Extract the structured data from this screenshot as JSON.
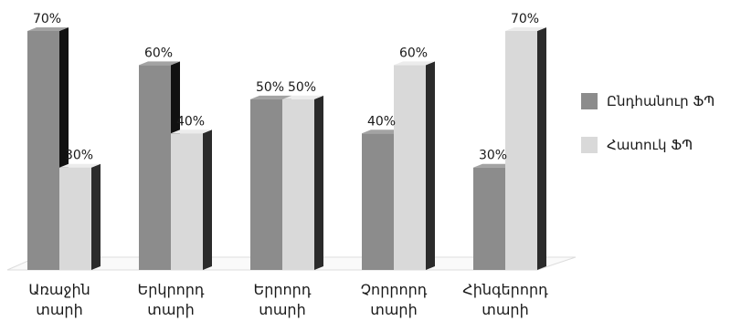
{
  "chart_data": {
    "type": "bar",
    "categories": [
      [
        "Առաջին",
        "տարի"
      ],
      [
        "Երկրորդ",
        "տարի"
      ],
      [
        "Երրորդ",
        "տարի"
      ],
      [
        "Չորրորդ",
        "տարի"
      ],
      [
        "Հինգերորդ",
        "տարի"
      ]
    ],
    "series": [
      {
        "name": "Ընդհանուր ՖՊ",
        "values": [
          70,
          60,
          50,
          40,
          30
        ],
        "labels": [
          "70%",
          "60%",
          "50%",
          "40%",
          "30%"
        ],
        "color": "#8c8c8c"
      },
      {
        "name": "Հատուկ ՖՊ",
        "values": [
          30,
          40,
          50,
          60,
          70
        ],
        "labels": [
          "30%",
          "40%",
          "50%",
          "60%",
          "70%"
        ],
        "color": "#d9d9d9"
      }
    ],
    "ylim": [
      0,
      80
    ],
    "grid": false,
    "legend_position": "right",
    "three_d": true
  }
}
